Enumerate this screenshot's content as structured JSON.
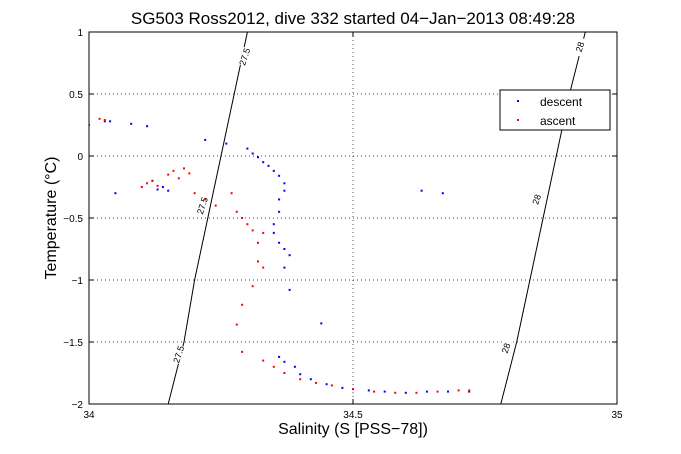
{
  "chart_data": {
    "type": "scatter",
    "title": "SG503 Ross2012, dive 332 started 04−Jan−2013 08:49:28",
    "xlabel": "Salinity (S [PSS−78])",
    "ylabel": "Temperature (°C)",
    "xlim": [
      34,
      35
    ],
    "ylim": [
      -2,
      1
    ],
    "xticks": [
      34,
      34.5,
      35
    ],
    "xtick_labels": [
      "34",
      "34.5",
      "35"
    ],
    "yticks": [
      -2,
      -1.5,
      -1,
      -0.5,
      0,
      0.5,
      1
    ],
    "ytick_labels": [
      "−2",
      "−1.5",
      "−1",
      "−0.5",
      "0",
      "0.5",
      "1"
    ],
    "grid": true,
    "legend_position": "top-right",
    "contours": [
      {
        "label": "27.5",
        "points": [
          [
            34.15,
            -2.0
          ],
          [
            34.18,
            -1.5
          ],
          [
            34.2,
            -1.0
          ],
          [
            34.225,
            -0.5
          ],
          [
            34.25,
            0.0
          ],
          [
            34.275,
            0.5
          ],
          [
            34.3,
            1.0
          ]
        ],
        "label_positions": [
          [
            34.295,
            0.8
          ],
          [
            34.215,
            -0.4
          ],
          [
            34.17,
            -1.6
          ]
        ]
      },
      {
        "label": "28",
        "points": [
          [
            34.78,
            -2.0
          ],
          [
            34.81,
            -1.5
          ],
          [
            34.835,
            -1.0
          ],
          [
            34.86,
            -0.5
          ],
          [
            34.885,
            0.0
          ],
          [
            34.91,
            0.5
          ],
          [
            34.94,
            1.0
          ]
        ],
        "label_positions": [
          [
            34.93,
            0.88
          ],
          [
            34.848,
            -0.35
          ],
          [
            34.79,
            -1.55
          ]
        ]
      }
    ],
    "series": [
      {
        "name": "descent",
        "color": "#0000ff",
        "points": [
          [
            34.03,
            0.28
          ],
          [
            34.04,
            0.28
          ],
          [
            34.08,
            0.26
          ],
          [
            34.11,
            0.24
          ],
          [
            34.05,
            -0.3
          ],
          [
            34.12,
            -0.2
          ],
          [
            34.14,
            -0.25
          ],
          [
            34.22,
            0.13
          ],
          [
            34.26,
            0.1
          ],
          [
            34.3,
            0.06
          ],
          [
            34.31,
            0.02
          ],
          [
            34.32,
            -0.01
          ],
          [
            34.33,
            -0.05
          ],
          [
            34.34,
            -0.08
          ],
          [
            34.35,
            -0.12
          ],
          [
            34.36,
            -0.16
          ],
          [
            34.37,
            -0.22
          ],
          [
            34.37,
            -0.28
          ],
          [
            34.36,
            -0.35
          ],
          [
            34.36,
            -0.45
          ],
          [
            34.35,
            -0.55
          ],
          [
            34.35,
            -0.62
          ],
          [
            34.36,
            -0.7
          ],
          [
            34.37,
            -0.75
          ],
          [
            34.38,
            -0.8
          ],
          [
            34.37,
            -0.9
          ],
          [
            34.38,
            -1.08
          ],
          [
            34.44,
            -1.35
          ],
          [
            34.36,
            -1.62
          ],
          [
            34.37,
            -1.66
          ],
          [
            34.39,
            -1.7
          ],
          [
            34.4,
            -1.76
          ],
          [
            34.42,
            -1.8
          ],
          [
            34.45,
            -1.84
          ],
          [
            34.48,
            -1.87
          ],
          [
            34.5,
            -1.88
          ],
          [
            34.53,
            -1.89
          ],
          [
            34.56,
            -1.9
          ],
          [
            34.6,
            -1.91
          ],
          [
            34.64,
            -1.9
          ],
          [
            34.68,
            -1.9
          ],
          [
            34.72,
            -1.9
          ],
          [
            34.63,
            -0.28
          ],
          [
            34.67,
            -0.3
          ],
          [
            34.15,
            -0.28
          ],
          [
            34.13,
            -0.27
          ]
        ]
      },
      {
        "name": "ascent",
        "color": "#ff0000",
        "points": [
          [
            34.0,
            0.25
          ],
          [
            34.02,
            0.3
          ],
          [
            34.03,
            0.29
          ],
          [
            34.1,
            -0.25
          ],
          [
            34.11,
            -0.22
          ],
          [
            34.12,
            -0.2
          ],
          [
            34.13,
            -0.24
          ],
          [
            34.15,
            -0.15
          ],
          [
            34.16,
            -0.12
          ],
          [
            34.17,
            -0.18
          ],
          [
            34.18,
            -0.1
          ],
          [
            34.19,
            -0.14
          ],
          [
            34.2,
            -0.3
          ],
          [
            34.22,
            -0.35
          ],
          [
            34.24,
            -0.4
          ],
          [
            34.27,
            -0.3
          ],
          [
            34.28,
            -0.45
          ],
          [
            34.29,
            -0.5
          ],
          [
            34.3,
            -0.55
          ],
          [
            34.31,
            -0.6
          ],
          [
            34.32,
            -0.7
          ],
          [
            34.33,
            -0.62
          ],
          [
            34.32,
            -0.85
          ],
          [
            34.33,
            -0.9
          ],
          [
            34.31,
            -1.05
          ],
          [
            34.29,
            -1.2
          ],
          [
            34.28,
            -1.36
          ],
          [
            34.29,
            -1.58
          ],
          [
            34.33,
            -1.65
          ],
          [
            34.35,
            -1.7
          ],
          [
            34.37,
            -1.75
          ],
          [
            34.4,
            -1.8
          ],
          [
            34.43,
            -1.83
          ],
          [
            34.46,
            -1.85
          ],
          [
            34.5,
            -1.88
          ],
          [
            34.54,
            -1.9
          ],
          [
            34.58,
            -1.91
          ],
          [
            34.62,
            -1.91
          ],
          [
            34.66,
            -1.9
          ],
          [
            34.7,
            -1.89
          ],
          [
            34.72,
            -1.89
          ]
        ]
      }
    ]
  }
}
